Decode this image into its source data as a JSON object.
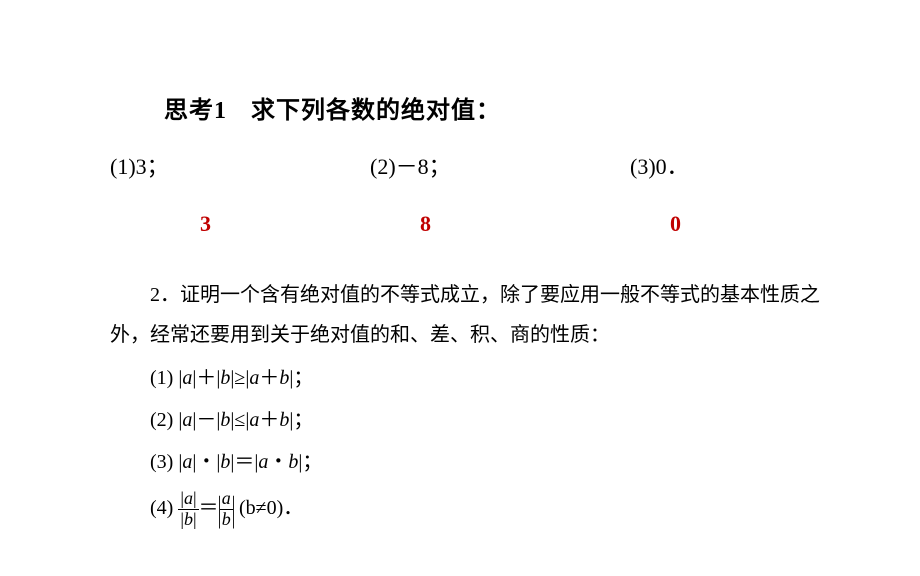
{
  "title": {
    "label": "思考1",
    "text": "求下列各数的绝对值："
  },
  "problems": {
    "p1": "(1)3；",
    "p2": "(2)－8；",
    "p3": "(3)0．"
  },
  "answers": {
    "a1": "3",
    "a2": "8",
    "a3": "0",
    "color": "#c00000"
  },
  "paragraph": {
    "lead": "2．证明一个含有绝对值的不等式成立，除了要应用一般不等式的基本性质之外，经常还要用到关于绝对值的和、差、积、商的性质："
  },
  "properties": {
    "p1_label": "(1)",
    "p1_lhs_a": "a",
    "p1_lhs_b": "b",
    "p1_rel": "≥",
    "p1_rhs_a": "a",
    "p1_rhs_b": "b",
    "p2_label": "(2)",
    "p2_rel": "≤",
    "p3_label": "(3)",
    "p3_rel": "＝",
    "p4_label": "(4)",
    "p4_cond": "(b≠0)．"
  },
  "style": {
    "text_color": "#000000",
    "answer_color": "#c00000",
    "background": "#ffffff",
    "title_fontsize": 24,
    "body_fontsize": 20,
    "answer_fontsize": 22
  }
}
